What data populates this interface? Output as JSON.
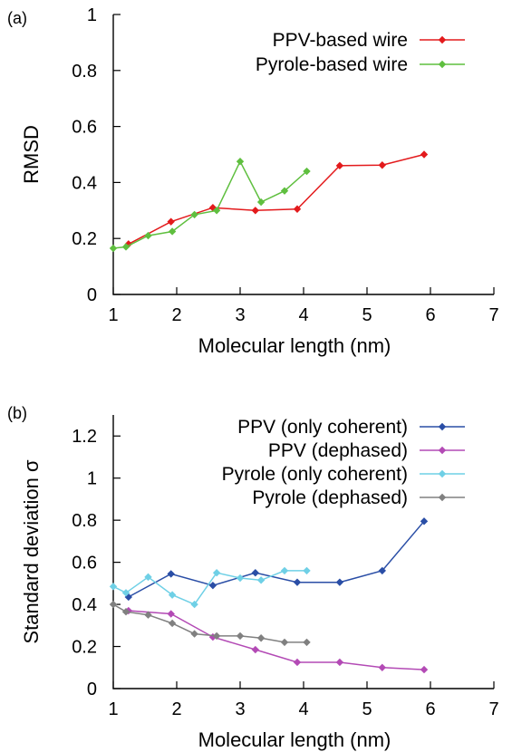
{
  "chart_data": [
    {
      "type": "line",
      "panel_label": "(a)",
      "xlabel": "Molecular length (nm)",
      "ylabel": "RMSD",
      "xlim": [
        1,
        7
      ],
      "ylim": [
        0,
        1
      ],
      "x_ticks": [
        "1",
        "2",
        "3",
        "4",
        "5",
        "6",
        "7"
      ],
      "y_ticks": [
        "0",
        "0.2",
        "0.4",
        "0.6",
        "0.8",
        "1"
      ],
      "x_tick_values": [
        1,
        2,
        3,
        4,
        5,
        6,
        7
      ],
      "y_tick_values": [
        0,
        0.2,
        0.4,
        0.6,
        0.8,
        1
      ],
      "grid": false,
      "legend_position": "top-right",
      "series": [
        {
          "name": "PPV-based wire",
          "color": "#e31a1c",
          "x": [
            1.24,
            1.91,
            2.57,
            3.24,
            3.9,
            4.57,
            5.24,
            5.9
          ],
          "y": [
            0.18,
            0.26,
            0.31,
            0.3,
            0.305,
            0.46,
            0.462,
            0.5
          ]
        },
        {
          "name": "Pyrole-based wire",
          "color": "#5fbf3f",
          "x": [
            1.0,
            1.2,
            1.55,
            1.93,
            2.28,
            2.63,
            3.0,
            3.33,
            3.7,
            4.05
          ],
          "y": [
            0.165,
            0.17,
            0.21,
            0.225,
            0.285,
            0.3,
            0.475,
            0.33,
            0.37,
            0.44
          ]
        }
      ]
    },
    {
      "type": "line",
      "panel_label": "(b)",
      "xlabel": "Molecular length (nm)",
      "ylabel": "Standard deviation σ",
      "xlim": [
        1,
        7
      ],
      "ylim": [
        0,
        1.3
      ],
      "x_ticks": [
        "1",
        "2",
        "3",
        "4",
        "5",
        "6",
        "7"
      ],
      "y_ticks": [
        "0",
        "0.2",
        "0.4",
        "0.6",
        "0.8",
        "1",
        "1.2"
      ],
      "x_tick_values": [
        1,
        2,
        3,
        4,
        5,
        6,
        7
      ],
      "y_tick_values": [
        0,
        0.2,
        0.4,
        0.6,
        0.8,
        1,
        1.2
      ],
      "grid": false,
      "legend_position": "top-right",
      "series": [
        {
          "name": "PPV (only coherent)",
          "color": "#2a4ea6",
          "x": [
            1.24,
            1.91,
            2.57,
            3.24,
            3.9,
            4.57,
            5.24,
            5.9
          ],
          "y": [
            0.435,
            0.545,
            0.49,
            0.55,
            0.505,
            0.505,
            0.56,
            0.795
          ]
        },
        {
          "name": "PPV (dephased)",
          "color": "#b34ab5",
          "x": [
            1.24,
            1.91,
            2.57,
            3.24,
            3.9,
            4.57,
            5.24,
            5.9
          ],
          "y": [
            0.37,
            0.355,
            0.245,
            0.185,
            0.125,
            0.125,
            0.1,
            0.09
          ]
        },
        {
          "name": "Pyrole (only coherent)",
          "color": "#6fd0e6",
          "x": [
            1.0,
            1.2,
            1.55,
            1.93,
            2.28,
            2.63,
            3.0,
            3.33,
            3.7,
            4.05
          ],
          "y": [
            0.485,
            0.455,
            0.53,
            0.445,
            0.4,
            0.55,
            0.525,
            0.515,
            0.56,
            0.56
          ]
        },
        {
          "name": "Pyrole (dephased)",
          "color": "#808080",
          "x": [
            1.0,
            1.2,
            1.55,
            1.93,
            2.28,
            2.63,
            3.0,
            3.33,
            3.7,
            4.05
          ],
          "y": [
            0.4,
            0.365,
            0.35,
            0.31,
            0.26,
            0.25,
            0.25,
            0.24,
            0.22,
            0.22
          ]
        }
      ]
    }
  ]
}
